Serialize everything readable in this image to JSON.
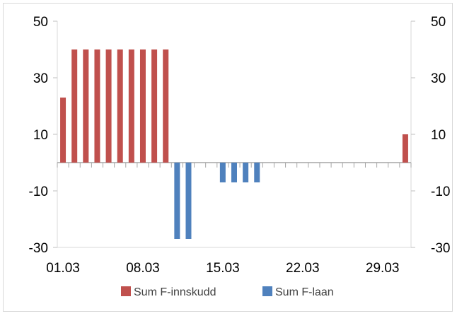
{
  "chart_data": {
    "type": "bar",
    "title": "",
    "xlabel": "",
    "ylabel": "",
    "ylim": [
      -30,
      50
    ],
    "y_ticks": [
      50,
      30,
      10,
      -10,
      -30
    ],
    "y_ticks_right": [
      50,
      30,
      10,
      -10,
      -30
    ],
    "x_tick_labels": [
      "01.03",
      "08.03",
      "15.03",
      "22.03",
      "29.03"
    ],
    "x_days": 31,
    "grid": false,
    "legend_position": "bottom",
    "series": [
      {
        "name": "Sum F-innskudd",
        "color": "#c0504d",
        "points": [
          {
            "day": 1,
            "value": 23
          },
          {
            "day": 2,
            "value": 40
          },
          {
            "day": 3,
            "value": 40
          },
          {
            "day": 4,
            "value": 40
          },
          {
            "day": 5,
            "value": 40
          },
          {
            "day": 6,
            "value": 40
          },
          {
            "day": 7,
            "value": 40
          },
          {
            "day": 8,
            "value": 40
          },
          {
            "day": 9,
            "value": 40
          },
          {
            "day": 10,
            "value": 40
          },
          {
            "day": 31,
            "value": 10
          }
        ]
      },
      {
        "name": "Sum F-laan",
        "color": "#4f81bd",
        "points": [
          {
            "day": 11,
            "value": -27
          },
          {
            "day": 12,
            "value": -27
          },
          {
            "day": 15,
            "value": -7
          },
          {
            "day": 16,
            "value": -7
          },
          {
            "day": 17,
            "value": -7
          },
          {
            "day": 18,
            "value": -7
          }
        ]
      }
    ]
  }
}
